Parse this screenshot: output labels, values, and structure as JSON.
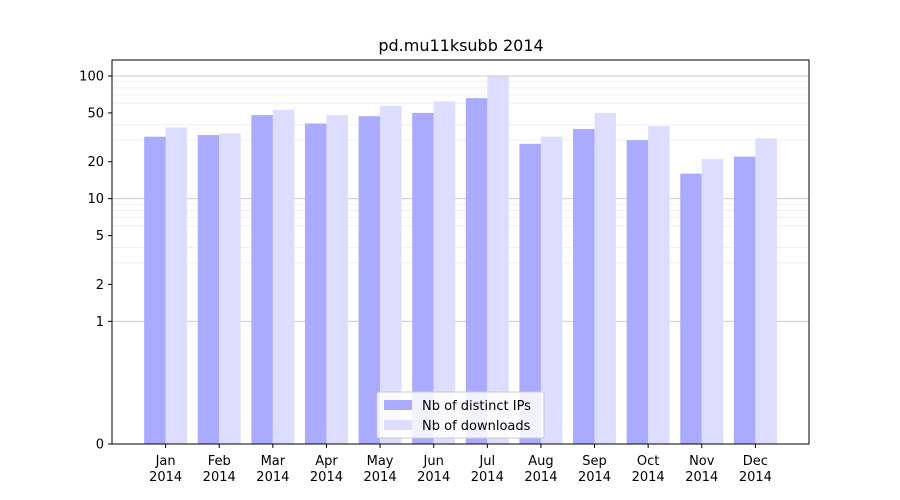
{
  "chart_data": {
    "type": "bar",
    "title": "pd.mu11ksubb 2014",
    "scale": "symlog",
    "categories": [
      "Jan\n2014",
      "Feb\n2014",
      "Mar\n2014",
      "Apr\n2014",
      "May\n2014",
      "Jun\n2014",
      "Jul\n2014",
      "Aug\n2014",
      "Sep\n2014",
      "Oct\n2014",
      "Nov\n2014",
      "Dec\n2014"
    ],
    "series": [
      {
        "name": "Nb of distinct IPs",
        "color": "#aaaaff",
        "values": [
          32,
          33,
          48,
          41,
          47,
          50,
          66,
          28,
          37,
          30,
          16,
          22
        ]
      },
      {
        "name": "Nb of downloads",
        "color": "#ddddff",
        "values": [
          38,
          34,
          53,
          48,
          57,
          62,
          99,
          32,
          50,
          39,
          21,
          31
        ]
      }
    ],
    "yticks": [
      0,
      1,
      2,
      5,
      10,
      20,
      50,
      100
    ],
    "ylim": [
      0,
      135
    ],
    "grid": "y",
    "legend_position": "bottom-center"
  }
}
